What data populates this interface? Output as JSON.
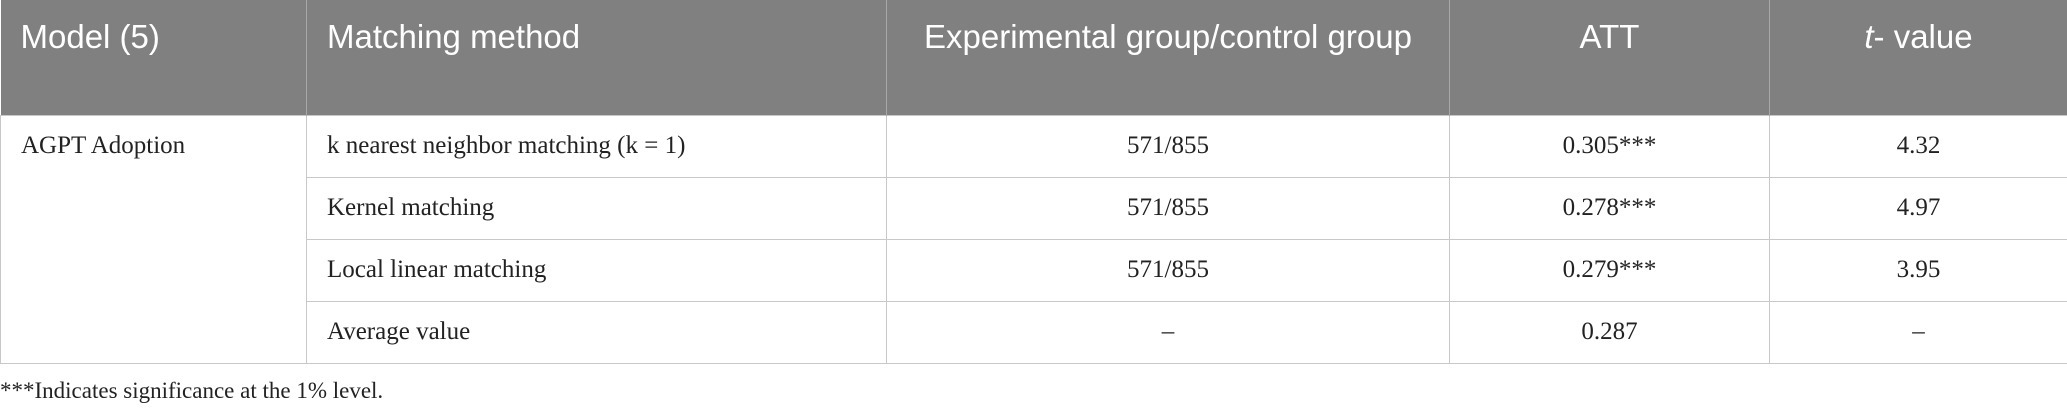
{
  "table": {
    "headers": [
      "Model (5)",
      "Matching method",
      "Experimental group/control group",
      "ATT"
    ],
    "t_header": {
      "italic": "t",
      "rest": "- value"
    },
    "group": "AGPT Adoption",
    "rows": [
      [
        "k nearest neighbor matching (k = 1)",
        "571/855",
        "0.305***",
        "4.32"
      ],
      [
        "Kernel matching",
        "571/855",
        "0.278***",
        "4.97"
      ],
      [
        "Local linear matching",
        "571/855",
        "0.279***",
        "3.95"
      ],
      [
        "Average value",
        "–",
        "0.287",
        "–"
      ]
    ]
  },
  "footnote": "***Indicates significance at the 1% level."
}
